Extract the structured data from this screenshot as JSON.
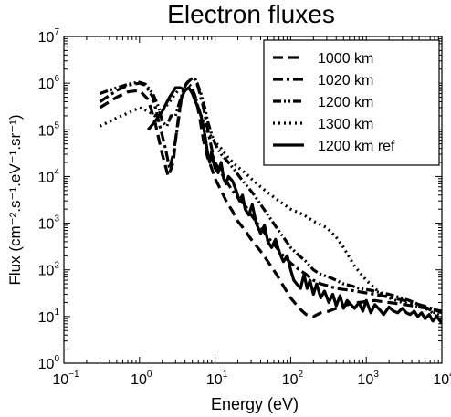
{
  "chart_data": {
    "type": "line",
    "title": "Electron fluxes",
    "xlabel": "Energy (eV)",
    "ylabel": "Flux (cm⁻².s⁻¹.eV⁻¹.sr⁻¹)",
    "x_scale": "log",
    "y_scale": "log",
    "xlim": [
      0.1,
      10000
    ],
    "ylim": [
      1,
      10000000
    ],
    "grid": false,
    "legend_position": "top-right",
    "x_ticks": [
      {
        "value": 0.1,
        "base": "10",
        "exp": "−1"
      },
      {
        "value": 1,
        "base": "10",
        "exp": "0"
      },
      {
        "value": 10,
        "base": "10",
        "exp": "1"
      },
      {
        "value": 100,
        "base": "10",
        "exp": "2"
      },
      {
        "value": 1000,
        "base": "10",
        "exp": "3"
      },
      {
        "value": 10000,
        "base": "10",
        "exp": "4"
      }
    ],
    "y_ticks": [
      {
        "value": 1,
        "base": "10",
        "exp": "0"
      },
      {
        "value": 10,
        "base": "10",
        "exp": "1"
      },
      {
        "value": 100,
        "base": "10",
        "exp": "2"
      },
      {
        "value": 1000,
        "base": "10",
        "exp": "3"
      },
      {
        "value": 10000,
        "base": "10",
        "exp": "4"
      },
      {
        "value": 100000,
        "base": "10",
        "exp": "5"
      },
      {
        "value": 1000000,
        "base": "10",
        "exp": "6"
      },
      {
        "value": 10000000,
        "base": "10",
        "exp": "7"
      }
    ],
    "series": [
      {
        "name": "1000 km",
        "style": "dashed",
        "x": [
          0.3,
          0.5,
          0.7,
          1.0,
          1.3,
          1.6,
          2.0,
          2.4,
          2.8,
          3.0,
          3.3,
          3.6,
          4.0,
          4.5,
          5.0,
          5.5,
          6.2,
          7.0,
          8.0,
          9.0,
          10,
          12,
          14,
          17,
          20,
          25,
          30,
          40,
          50,
          65,
          80,
          100,
          130,
          160,
          200,
          250,
          320,
          400,
          500,
          650,
          800,
          1000,
          1300,
          1600,
          2000,
          2500,
          3200,
          4000,
          5000,
          6500,
          8000,
          10000
        ],
        "y": [
          300000,
          500000,
          650000,
          700000,
          450000,
          150000,
          30000,
          10000,
          20000,
          60000,
          200000,
          500000,
          700000,
          800000,
          750000,
          500000,
          200000,
          60000,
          25000,
          15000,
          9000,
          5000,
          3000,
          1800,
          1100,
          700,
          450,
          250,
          150,
          80,
          45,
          25,
          15,
          11,
          10,
          12,
          13,
          15,
          17,
          19,
          20,
          21,
          22,
          21,
          20,
          19,
          18,
          17,
          16,
          15,
          14,
          13
        ]
      },
      {
        "name": "1020 km",
        "style": "dashdot",
        "x": [
          0.3,
          0.5,
          0.7,
          1.0,
          1.2,
          1.5,
          1.8,
          2.2,
          2.5,
          2.8,
          3.2,
          3.6,
          4.0,
          4.5,
          5.0,
          5.5,
          6.0,
          7.0,
          8.0,
          9.0,
          10,
          12,
          14,
          17,
          20,
          25,
          30,
          40,
          50,
          65,
          80,
          100,
          130,
          160,
          200,
          250,
          320,
          400,
          500,
          650,
          800,
          1000,
          1300,
          1600,
          2000,
          2500,
          3200,
          4000,
          5000,
          6500,
          8000,
          10000
        ],
        "y": [
          400000,
          700000,
          900000,
          1000000,
          900000,
          500000,
          150000,
          40000,
          15000,
          30000,
          120000,
          500000,
          900000,
          1100000,
          1300000,
          1200000,
          800000,
          300000,
          100000,
          40000,
          20000,
          12000,
          8000,
          5000,
          3500,
          2400,
          1500,
          800,
          500,
          300,
          200,
          140,
          100,
          80,
          60,
          50,
          45,
          40,
          38,
          36,
          34,
          32,
          30,
          28,
          26,
          24,
          22,
          20,
          18,
          16,
          14,
          12
        ]
      },
      {
        "name": "1200 km",
        "style": "dashdotdot",
        "x": [
          0.3,
          0.5,
          0.8,
          1.0,
          1.2,
          1.5,
          1.8,
          2.0,
          2.3,
          2.6,
          3.0,
          3.4,
          3.8,
          4.2,
          4.7,
          5.2,
          5.8,
          6.5,
          7.3,
          8.0,
          9.0,
          10,
          12,
          15,
          18,
          22,
          27,
          33,
          40,
          50,
          65,
          80,
          100,
          130,
          160,
          200,
          250,
          320,
          400,
          500,
          650,
          800,
          1000,
          1300,
          1600,
          2000,
          2500,
          3200,
          4000,
          5000,
          6500,
          8000,
          10000
        ],
        "y": [
          600000,
          800000,
          1000000,
          1050000,
          950000,
          600000,
          300000,
          150000,
          120000,
          200000,
          200000,
          400000,
          700000,
          1000000,
          1200000,
          1300000,
          1000000,
          600000,
          300000,
          150000,
          80000,
          50000,
          30000,
          20000,
          14000,
          9000,
          6000,
          4000,
          2500,
          1500,
          800,
          500,
          300,
          200,
          150,
          100,
          80,
          70,
          60,
          50,
          45,
          40,
          38,
          35,
          32,
          30,
          27,
          24,
          21,
          18,
          15,
          12,
          10
        ]
      },
      {
        "name": "1300 km",
        "style": "dotted",
        "x": [
          0.3,
          0.5,
          0.8,
          1.0,
          1.3,
          1.6,
          2.0,
          2.5,
          3.0,
          3.5,
          4.0,
          4.5,
          5.0,
          5.5,
          6.0,
          7.0,
          8.0,
          9.0,
          10,
          12,
          15,
          20,
          25,
          30,
          40,
          50,
          70,
          100,
          150,
          200,
          300,
          400,
          500,
          700,
          1000,
          1300,
          1600,
          2000,
          2500,
          3000,
          3500,
          4000,
          5000,
          6000,
          7000,
          8000,
          10000
        ],
        "y": [
          120000,
          180000,
          250000,
          300000,
          250000,
          200000,
          250000,
          400000,
          600000,
          800000,
          900000,
          950000,
          800000,
          500000,
          300000,
          150000,
          90000,
          70000,
          55000,
          40000,
          25000,
          16000,
          12000,
          9000,
          6000,
          4500,
          3000,
          2000,
          1500,
          1100,
          800,
          500,
          300,
          120,
          60,
          40,
          30,
          25,
          22,
          20,
          19,
          18,
          16,
          15,
          13,
          11,
          8
        ]
      },
      {
        "name": "1200 km ref",
        "style": "solid",
        "x": [
          1.3,
          1.6,
          2.0,
          2.5,
          3.0,
          3.5,
          4.0,
          4.5,
          5.0,
          5.5,
          6.0,
          6.5,
          7.0,
          7.5,
          8.0,
          8.5,
          9.0,
          9.5,
          10,
          11,
          12,
          13,
          14,
          15,
          17,
          19,
          21,
          23,
          25,
          28,
          31,
          35,
          40,
          45,
          50,
          56,
          63,
          70,
          80,
          90,
          100,
          110,
          120,
          135,
          150,
          165,
          180,
          200,
          220,
          250,
          280,
          320,
          360,
          400,
          450,
          500,
          560,
          630,
          700,
          800,
          900,
          1000,
          1150,
          1300,
          1500,
          1700,
          2000,
          2300,
          2600,
          3000,
          3400,
          3800,
          4300,
          4800,
          5400,
          6000,
          6800,
          7600,
          8500,
          9500,
          10000
        ],
        "y": [
          100000,
          150000,
          250000,
          500000,
          800000,
          800000,
          700000,
          800000,
          600000,
          400000,
          300000,
          200000,
          120000,
          60000,
          30000,
          20000,
          35000,
          20000,
          15000,
          12000,
          20000,
          9000,
          7000,
          10000,
          8000,
          5000,
          3000,
          4000,
          2000,
          1500,
          2500,
          1000,
          600,
          900,
          400,
          300,
          450,
          250,
          150,
          200,
          100,
          60,
          50,
          40,
          80,
          40,
          60,
          30,
          50,
          25,
          35,
          20,
          30,
          17,
          28,
          15,
          22,
          18,
          15,
          20,
          13,
          22,
          12,
          18,
          14,
          11,
          16,
          13,
          12,
          15,
          12,
          11,
          13,
          10,
          12,
          9,
          11,
          8,
          10,
          8,
          7
        ]
      }
    ]
  }
}
